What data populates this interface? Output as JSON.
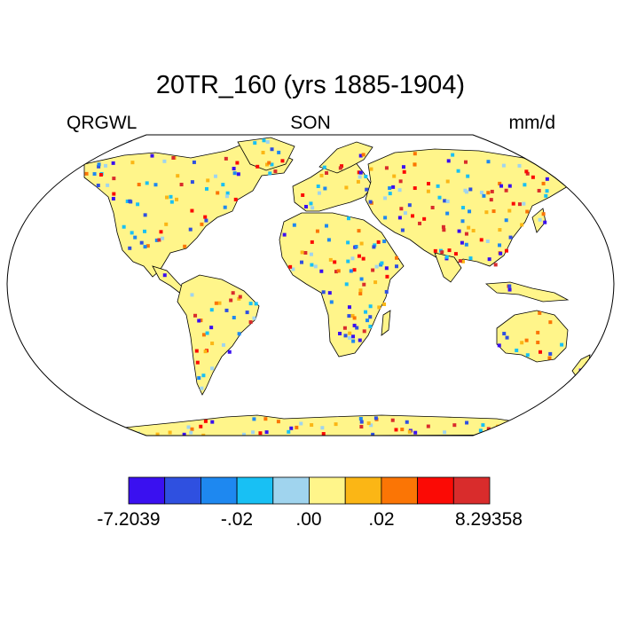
{
  "title": "20TR_160 (yrs 1885-1904)",
  "left_label": "QRGWL",
  "center_label": "SON",
  "right_label": "mm/d",
  "colorbar": {
    "colors": [
      "#3a10f0",
      "#2f50e0",
      "#1e88f0",
      "#18c0f4",
      "#a0d4ee",
      "#fff58a",
      "#fbb615",
      "#fb7505",
      "#fb0a05",
      "#d92c2c"
    ],
    "tick_labels": [
      "-7.2039",
      "-.02",
      ".00",
      ".02",
      "8.29358"
    ]
  },
  "map": {
    "projection": "Robinson",
    "land_color": "#fff58a",
    "coastline_color": "#000000"
  }
}
